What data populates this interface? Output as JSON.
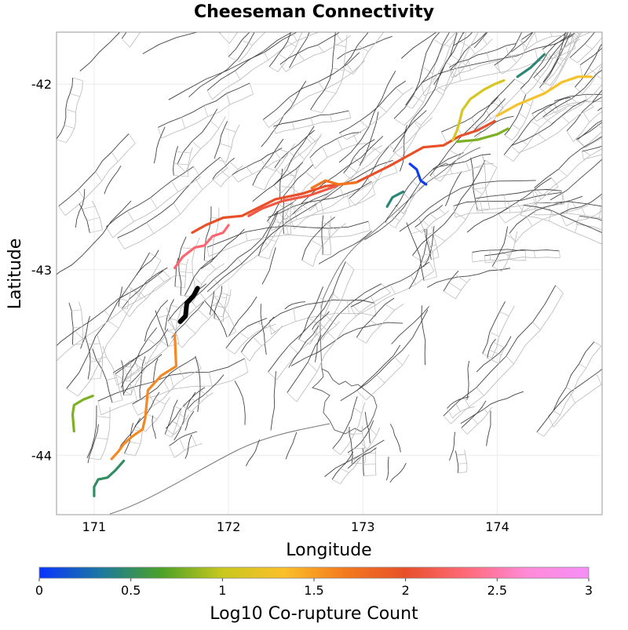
{
  "title": "Cheeseman Connectivity",
  "x_axis": {
    "label": "Longitude",
    "range": [
      170.72,
      174.78
    ],
    "ticks": [
      {
        "value": 171,
        "label": "171"
      },
      {
        "value": 172,
        "label": "172"
      },
      {
        "value": 173,
        "label": "173"
      },
      {
        "value": 174,
        "label": "174"
      }
    ]
  },
  "y_axis": {
    "label": "Latitude",
    "range": [
      -44.32,
      -41.72
    ],
    "ticks": [
      {
        "value": -42,
        "label": "-42"
      },
      {
        "value": -43,
        "label": "-43"
      },
      {
        "value": -44,
        "label": "-44"
      }
    ]
  },
  "colorbar": {
    "label": "Log10 Co-rupture Count",
    "min": 0,
    "max": 3,
    "stops": [
      "#0a33ff",
      "#1b78a0",
      "#4ba126",
      "#c8c81e",
      "#fbc02a",
      "#f47a1e",
      "#e8502a",
      "#ff6a7a",
      "#ff8ad8",
      "#f68ef8"
    ],
    "ticks": [
      {
        "value": 0,
        "label": "0"
      },
      {
        "value": 0.5,
        "label": "0.5"
      },
      {
        "value": 1,
        "label": "1"
      },
      {
        "value": 1.5,
        "label": "1.5"
      },
      {
        "value": 2,
        "label": "2"
      },
      {
        "value": 2.5,
        "label": "2.5"
      },
      {
        "value": 3,
        "label": "3"
      }
    ]
  },
  "source_fault": {
    "name": "Cheeseman",
    "color": "#000000",
    "points": [
      [
        171.64,
        -43.28
      ],
      [
        171.68,
        -43.25
      ],
      [
        171.69,
        -43.18
      ],
      [
        171.74,
        -43.14
      ],
      [
        171.77,
        -43.1
      ]
    ]
  },
  "connected_faults": [
    {
      "log10": 2.3,
      "points": [
        [
          171.6,
          -42.99
        ],
        [
          171.66,
          -42.93
        ],
        [
          171.75,
          -42.88
        ],
        [
          171.82,
          -42.87
        ],
        [
          171.88,
          -42.82
        ],
        [
          171.96,
          -42.8
        ],
        [
          172.0,
          -42.76
        ]
      ]
    },
    {
      "log10": 2.0,
      "points": [
        [
          171.73,
          -42.8
        ],
        [
          171.83,
          -42.76
        ],
        [
          171.96,
          -42.72
        ],
        [
          172.1,
          -42.71
        ],
        [
          172.35,
          -42.62
        ],
        [
          172.55,
          -42.59
        ],
        [
          172.72,
          -42.55
        ],
        [
          172.95,
          -42.53
        ],
        [
          173.2,
          -42.44
        ],
        [
          173.35,
          -42.38
        ],
        [
          173.45,
          -42.34
        ],
        [
          173.6,
          -42.33
        ],
        [
          173.72,
          -42.28
        ],
        [
          173.85,
          -42.25
        ],
        [
          173.98,
          -42.2
        ]
      ]
    },
    {
      "log10": 2.1,
      "points": [
        [
          172.15,
          -42.71
        ],
        [
          172.25,
          -42.67
        ],
        [
          172.4,
          -42.63
        ],
        [
          172.6,
          -42.6
        ],
        [
          172.8,
          -42.55
        ]
      ]
    },
    {
      "log10": 1.7,
      "points": [
        [
          172.62,
          -42.56
        ],
        [
          172.72,
          -42.52
        ],
        [
          172.82,
          -42.54
        ],
        [
          172.95,
          -42.53
        ]
      ]
    },
    {
      "log10": 1.3,
      "points": [
        [
          174.0,
          -42.17
        ],
        [
          174.15,
          -42.11
        ],
        [
          174.35,
          -42.05
        ],
        [
          174.48,
          -41.99
        ],
        [
          174.6,
          -41.96
        ],
        [
          174.7,
          -41.96
        ]
      ]
    },
    {
      "log10": 1.1,
      "points": [
        [
          173.67,
          -42.3
        ],
        [
          173.7,
          -42.25
        ],
        [
          173.72,
          -42.2
        ],
        [
          173.74,
          -42.14
        ],
        [
          173.8,
          -42.08
        ],
        [
          173.9,
          -42.03
        ],
        [
          173.98,
          -42.0
        ],
        [
          174.05,
          -41.98
        ]
      ]
    },
    {
      "log10": 0.8,
      "points": [
        [
          173.7,
          -42.31
        ],
        [
          173.85,
          -42.3
        ],
        [
          174.0,
          -42.27
        ],
        [
          174.08,
          -42.24
        ]
      ]
    },
    {
      "log10": 0.45,
      "points": [
        [
          174.15,
          -41.96
        ],
        [
          174.25,
          -41.91
        ],
        [
          174.35,
          -41.84
        ]
      ]
    },
    {
      "log10": 0.45,
      "points": [
        [
          173.18,
          -42.66
        ],
        [
          173.22,
          -42.61
        ],
        [
          173.3,
          -42.58
        ]
      ]
    },
    {
      "log10": 0.05,
      "points": [
        [
          173.35,
          -42.43
        ],
        [
          173.4,
          -42.46
        ],
        [
          173.43,
          -42.52
        ],
        [
          173.47,
          -42.54
        ]
      ]
    },
    {
      "log10": 1.6,
      "points": [
        [
          171.6,
          -43.35
        ],
        [
          171.61,
          -43.52
        ],
        [
          171.5,
          -43.57
        ],
        [
          171.4,
          -43.65
        ],
        [
          171.38,
          -43.8
        ],
        [
          171.36,
          -43.86
        ],
        [
          171.28,
          -43.9
        ],
        [
          171.22,
          -43.94
        ],
        [
          171.18,
          -43.98
        ],
        [
          171.13,
          -44.02
        ]
      ]
    },
    {
      "log10": 0.8,
      "points": [
        [
          170.85,
          -43.87
        ],
        [
          170.84,
          -43.78
        ],
        [
          170.85,
          -43.73
        ],
        [
          170.92,
          -43.7
        ],
        [
          170.99,
          -43.68
        ]
      ]
    },
    {
      "log10": 0.5,
      "points": [
        [
          171.0,
          -44.22
        ],
        [
          171.0,
          -44.17
        ],
        [
          171.03,
          -44.13
        ],
        [
          171.1,
          -44.12
        ],
        [
          171.16,
          -44.08
        ],
        [
          171.22,
          -44.03
        ]
      ]
    }
  ]
}
